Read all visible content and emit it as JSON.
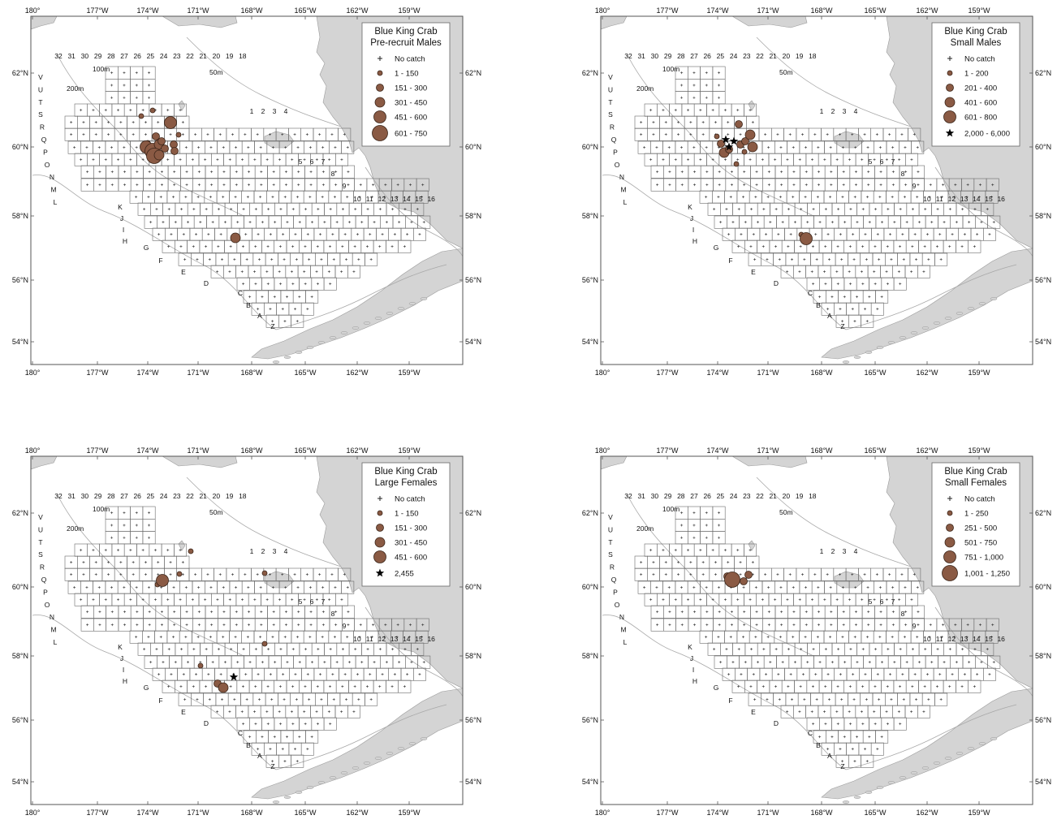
{
  "colors": {
    "land": "#d4d4d4",
    "bubble_fill": "#8a5a44",
    "bubble_stroke": "#3a2418",
    "grid_line": "#6b6b6b",
    "frame": "#555555",
    "star": "#000000"
  },
  "axes": {
    "top_lon_labels": [
      "180°",
      "177°W",
      "174°W",
      "171°W",
      "168°W",
      "165°W",
      "162°W",
      "159°W"
    ],
    "bottom_lon_labels": [
      "180°",
      "177°W",
      "174°W",
      "171°W",
      "168°W",
      "165°W",
      "162°W",
      "159°W"
    ],
    "lat_labels": [
      "62°N",
      "60°N",
      "58°N",
      "56°N",
      "54°N"
    ]
  },
  "station_labels": {
    "columns_north": [
      "32",
      "31",
      "30",
      "29",
      "28",
      "27",
      "26",
      "25",
      "24",
      "23",
      "22",
      "21",
      "20",
      "19",
      "18"
    ],
    "columns_east_1": [
      "1",
      "2",
      "3",
      "4"
    ],
    "columns_east_2": [
      "5",
      "6",
      "7"
    ],
    "col_8": "8",
    "col_9": "9",
    "columns_east_3": [
      "10",
      "11",
      "12",
      "13",
      "14",
      "15",
      "16"
    ],
    "rows_west": [
      "V",
      "U",
      "T",
      "S",
      "R",
      "Q",
      "P",
      "O",
      "N",
      "M",
      "L"
    ],
    "rows_south": [
      "K",
      "J",
      "I",
      "H",
      "G",
      "F",
      "E",
      "D",
      "C",
      "B",
      "A",
      "Z"
    ]
  },
  "contour_labels": [
    "100m",
    "200m",
    "50m"
  ],
  "panels": [
    {
      "title_line1": "Blue King Crab",
      "title_line2": "Pre-recruit Males",
      "legend": [
        {
          "symbol": "plus",
          "label": "No catch"
        },
        {
          "symbol": "circle",
          "size": 1,
          "label": "1 - 150"
        },
        {
          "symbol": "circle",
          "size": 2,
          "label": "151 - 300"
        },
        {
          "symbol": "circle",
          "size": 3,
          "label": "301 - 450"
        },
        {
          "symbol": "circle",
          "size": 4,
          "label": "451 - 600"
        },
        {
          "symbol": "circle",
          "size": 5,
          "label": "601 - 750"
        }
      ]
    },
    {
      "title_line1": "Blue King Crab",
      "title_line2": "Small Males",
      "legend": [
        {
          "symbol": "plus",
          "label": "No catch"
        },
        {
          "symbol": "circle",
          "size": 1,
          "label": "1 - 200"
        },
        {
          "symbol": "circle",
          "size": 2,
          "label": "201 - 400"
        },
        {
          "symbol": "circle",
          "size": 3,
          "label": "401 - 600"
        },
        {
          "symbol": "circle",
          "size": 4,
          "label": "601 - 800"
        },
        {
          "symbol": "star",
          "label": "2,000 - 6,000"
        }
      ]
    },
    {
      "title_line1": "Blue King Crab",
      "title_line2": "Large Females",
      "legend": [
        {
          "symbol": "plus",
          "label": "No catch"
        },
        {
          "symbol": "circle",
          "size": 1,
          "label": "1 - 150"
        },
        {
          "symbol": "circle",
          "size": 2,
          "label": "151 - 300"
        },
        {
          "symbol": "circle",
          "size": 3,
          "label": "301 - 450"
        },
        {
          "symbol": "circle",
          "size": 4,
          "label": "451 - 600"
        },
        {
          "symbol": "star",
          "label": "2,455"
        }
      ]
    },
    {
      "title_line1": "Blue King Crab",
      "title_line2": "Small Females",
      "legend": [
        {
          "symbol": "plus",
          "label": "No catch"
        },
        {
          "symbol": "circle",
          "size": 1,
          "label": "1 - 250"
        },
        {
          "symbol": "circle",
          "size": 2,
          "label": "251 - 500"
        },
        {
          "symbol": "circle",
          "size": 3,
          "label": "501 - 750"
        },
        {
          "symbol": "circle",
          "size": 4,
          "label": "751 - 1,000"
        },
        {
          "symbol": "circle",
          "size": 5,
          "label": "1,001 - 1,250"
        }
      ]
    }
  ]
}
